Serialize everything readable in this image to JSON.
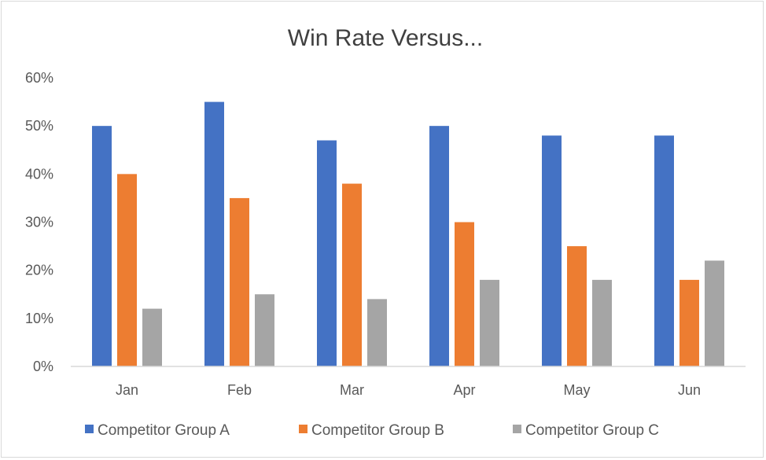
{
  "chart_data": {
    "type": "bar",
    "title": "Win Rate Versus...",
    "xlabel": "",
    "ylabel": "",
    "categories": [
      "Jan",
      "Feb",
      "Mar",
      "Apr",
      "May",
      "Jun"
    ],
    "ylim": [
      0,
      60
    ],
    "yticks": [
      0,
      10,
      20,
      30,
      40,
      50,
      60
    ],
    "ytick_labels": [
      "0%",
      "10%",
      "20%",
      "30%",
      "40%",
      "50%",
      "60%"
    ],
    "grid": false,
    "legend_position": "bottom",
    "series": [
      {
        "name": "Competitor Group A",
        "color": "#4472c4",
        "values": [
          50,
          55,
          47,
          50,
          48,
          48
        ]
      },
      {
        "name": "Competitor Group B",
        "color": "#ed7d31",
        "values": [
          40,
          35,
          38,
          30,
          25,
          18
        ]
      },
      {
        "name": "Competitor Group C",
        "color": "#a5a5a5",
        "values": [
          12,
          15,
          14,
          18,
          18,
          22
        ]
      }
    ]
  }
}
